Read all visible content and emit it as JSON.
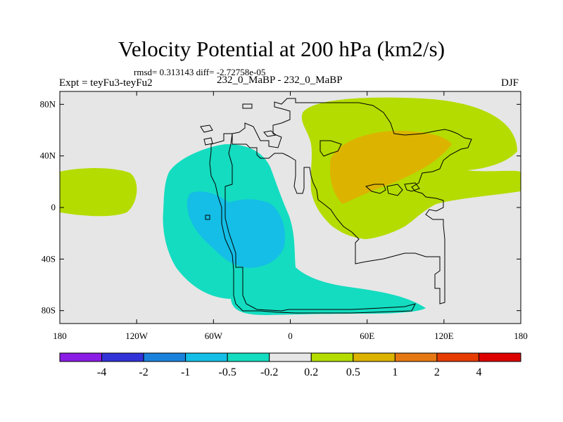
{
  "header": {
    "title": "Velocity Potential at 200 hPa (km2/s)",
    "stats": "rmsd= 0.313143 diff= -2.72758e-05",
    "left_label": "Expt = teyFu3-teyFu2",
    "center_label": "232_0_MaBP - 232_0_MaBP",
    "right_label": "DJF"
  },
  "map": {
    "background_color": "#e6e6e6",
    "lon_range": [
      -180,
      180
    ],
    "lat_range": [
      -90,
      90
    ],
    "lat_ticks": [
      {
        "value": 80,
        "label": "80N"
      },
      {
        "value": 40,
        "label": "40N"
      },
      {
        "value": 0,
        "label": "0"
      },
      {
        "value": -40,
        "label": "40S"
      },
      {
        "value": -80,
        "label": "80S"
      }
    ],
    "lon_ticks": [
      {
        "value": -180,
        "label": "180"
      },
      {
        "value": -120,
        "label": "120W"
      },
      {
        "value": -60,
        "label": "60W"
      },
      {
        "value": 0,
        "label": "0"
      },
      {
        "value": 60,
        "label": "60E"
      },
      {
        "value": 120,
        "label": "120E"
      },
      {
        "value": 180,
        "label": "180"
      }
    ]
  },
  "colorbar": {
    "colors": [
      "#8a1ce6",
      "#3232d9",
      "#1a82dc",
      "#14bee6",
      "#14dcc0",
      "#e6e6e6",
      "#b4dc00",
      "#dcb400",
      "#e67814",
      "#e63c00",
      "#dc0000"
    ],
    "labels": [
      "-4",
      "-2",
      "-1",
      "-0.5",
      "-0.2",
      "0.2",
      "0.5",
      "1",
      "2",
      "4"
    ]
  }
}
